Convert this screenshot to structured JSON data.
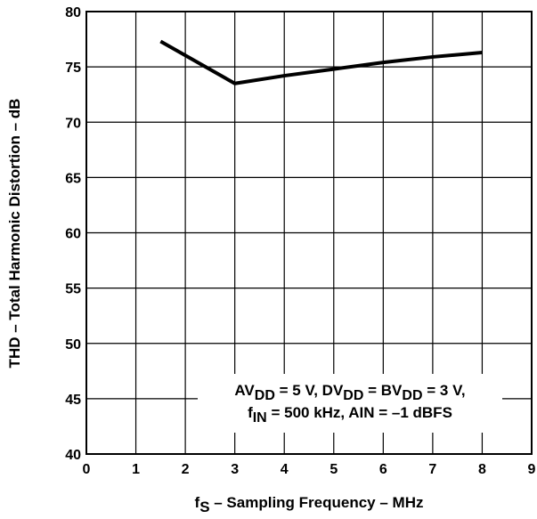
{
  "chart_data": {
    "type": "line",
    "xlabel": {
      "main": "f",
      "sub": "S",
      "rest": " – Sampling Frequency – MHz"
    },
    "ylabel": "THD – Total Harmonic Distortion – dB",
    "xlim": [
      0,
      9
    ],
    "ylim": [
      40,
      80
    ],
    "xticks": [
      0,
      1,
      2,
      3,
      4,
      5,
      6,
      7,
      8,
      9
    ],
    "yticks": [
      40,
      45,
      50,
      55,
      60,
      65,
      70,
      75,
      80
    ],
    "grid": true,
    "series": [
      {
        "x": [
          1.5,
          3,
          4,
          5,
          6,
          7,
          8
        ],
        "y": [
          77.3,
          73.5,
          74.2,
          74.8,
          75.4,
          75.9,
          76.3
        ]
      }
    ],
    "annotation": {
      "line1": [
        {
          "text": "AV",
          "sub": false
        },
        {
          "text": "DD",
          "sub": true
        },
        {
          "text": " = 5 V, DV",
          "sub": false
        },
        {
          "text": "DD",
          "sub": true
        },
        {
          "text": " = BV",
          "sub": false
        },
        {
          "text": "DD",
          "sub": true
        },
        {
          "text": " = 3 V,",
          "sub": false
        }
      ],
      "line2": [
        {
          "text": "f",
          "sub": false
        },
        {
          "text": "IN",
          "sub": true
        },
        {
          "text": " = 500 kHz, AIN = –1 dBFS",
          "sub": false
        }
      ]
    },
    "line_color": "#000000"
  }
}
